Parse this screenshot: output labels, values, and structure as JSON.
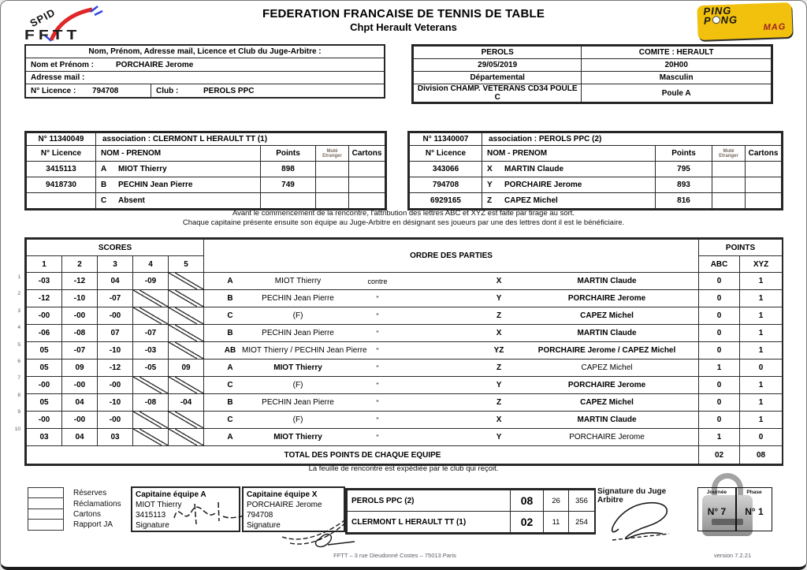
{
  "header": {
    "title": "FEDERATION FRANCAISE DE TENNIS DE TABLE",
    "subtitle": "Chpt Herault Veterans",
    "logo_spid": "SPID",
    "logo_fftt": "FFTT",
    "logo_ping": "PING",
    "logo_pong_p": "P",
    "logo_pong_ng": "NG",
    "logo_mag": "MAG"
  },
  "judge_box": {
    "header": "Nom, Prénom, Adresse mail, Licence et Club du Juge-Arbitre :",
    "name_label": "Nom et Prénom :",
    "name_value": "PORCHAIRE   Jerome",
    "mail_label": "Adresse mail  :",
    "licence_label": "N° Licence    :",
    "licence_value": "794708",
    "club_label": "Club :",
    "club_value": "PEROLS PPC"
  },
  "info_box": {
    "rows": [
      [
        "PEROLS",
        "COMITE : HERAULT"
      ],
      [
        "29/05/2019",
        "20H00"
      ],
      [
        "Départemental",
        "Masculin"
      ],
      [
        "Division  CHAMP. VETERANS CD34 POULE C",
        "Poule A"
      ]
    ]
  },
  "teams": [
    {
      "number": "N° 11340049",
      "association": "association : CLERMONT L HERAULT TT  (1)",
      "headers": {
        "licence": "N° Licence",
        "name": "NOM - PRENOM",
        "points": "Points",
        "mute": "Muté",
        "etranger": "Etranger",
        "cartons": "Cartons"
      },
      "players": [
        {
          "licence": "3415113",
          "letter": "A",
          "name": "MIOT  Thierry",
          "points": "898"
        },
        {
          "licence": "9418730",
          "letter": "B",
          "name": "PECHIN  Jean Pierre",
          "points": "749"
        },
        {
          "licence": "",
          "letter": "C",
          "name": "Absent",
          "points": ""
        }
      ]
    },
    {
      "number": "N° 11340007",
      "association": "association : PEROLS PPC  (2)",
      "headers": {
        "licence": "N° Licence",
        "name": "NOM - PRENOM",
        "points": "Points",
        "mute": "Muté",
        "etranger": "Etranger",
        "cartons": "Cartons"
      },
      "players": [
        {
          "licence": "343066",
          "letter": "X",
          "name": "MARTIN  Claude",
          "points": "795"
        },
        {
          "licence": "794708",
          "letter": "Y",
          "name": "PORCHAIRE  Jerome",
          "points": "893"
        },
        {
          "licence": "6929165",
          "letter": "Z",
          "name": "CAPEZ  Michel",
          "points": "816"
        }
      ]
    }
  ],
  "notice": {
    "line1": "Avant le commencement de la rencontre, l'attribution des lettres ABC et XYZ est faite par tirage au sort.",
    "line2": "Chaque capitaine présente ensuite son équipe au Juge-Arbitre en désignant ses joueurs par une des lettres dont il est le bénéficiaire."
  },
  "match_table": {
    "scores_label": "SCORES",
    "set_headers": [
      "1",
      "2",
      "3",
      "4",
      "5"
    ],
    "ordre_label": "ORDRE DES PARTIES",
    "points_label": "POINTS",
    "abc_label": "ABC",
    "xyz_label": "XYZ",
    "vs_first": "contre",
    "vs_rest": "\"",
    "rows": [
      {
        "num": "1",
        "scores": [
          "-03",
          "-12",
          "04",
          "-09",
          null
        ],
        "a": {
          "letter": "A",
          "player": "MIOT Thierry",
          "win": false
        },
        "x": {
          "letter": "X",
          "player": "MARTIN Claude",
          "win": true
        },
        "abc": "0",
        "xyz": "1"
      },
      {
        "num": "2",
        "scores": [
          "-12",
          "-10",
          "-07",
          null,
          null
        ],
        "a": {
          "letter": "B",
          "player": "PECHIN Jean Pierre",
          "win": false
        },
        "x": {
          "letter": "Y",
          "player": "PORCHAIRE Jerome",
          "win": true
        },
        "abc": "0",
        "xyz": "1"
      },
      {
        "num": "3",
        "scores": [
          "-00",
          "-00",
          "-00",
          null,
          null
        ],
        "a": {
          "letter": "C",
          "player": "(F)",
          "win": false
        },
        "x": {
          "letter": "Z",
          "player": "CAPEZ Michel",
          "win": true
        },
        "abc": "0",
        "xyz": "1"
      },
      {
        "num": "4",
        "scores": [
          "-06",
          "-08",
          "07",
          "-07",
          null
        ],
        "a": {
          "letter": "B",
          "player": "PECHIN Jean Pierre",
          "win": false
        },
        "x": {
          "letter": "X",
          "player": "MARTIN Claude",
          "win": true
        },
        "abc": "0",
        "xyz": "1"
      },
      {
        "num": "5",
        "scores": [
          "05",
          "-07",
          "-10",
          "-03",
          null
        ],
        "a": {
          "letter": "AB",
          "player": "MIOT Thierry / PECHIN Jean Pierre",
          "win": false
        },
        "x": {
          "letter": "YZ",
          "player": "PORCHAIRE Jerome / CAPEZ Michel",
          "win": true
        },
        "abc": "0",
        "xyz": "1"
      },
      {
        "num": "6",
        "scores": [
          "05",
          "09",
          "-12",
          "-05",
          "09"
        ],
        "a": {
          "letter": "A",
          "player": "MIOT Thierry",
          "win": true
        },
        "x": {
          "letter": "Z",
          "player": "CAPEZ Michel",
          "win": false
        },
        "abc": "1",
        "xyz": "0"
      },
      {
        "num": "7",
        "scores": [
          "-00",
          "-00",
          "-00",
          null,
          null
        ],
        "a": {
          "letter": "C",
          "player": "(F)",
          "win": false
        },
        "x": {
          "letter": "Y",
          "player": "PORCHAIRE Jerome",
          "win": true
        },
        "abc": "0",
        "xyz": "1"
      },
      {
        "num": "8",
        "scores": [
          "05",
          "04",
          "-10",
          "-08",
          "-04"
        ],
        "a": {
          "letter": "B",
          "player": "PECHIN Jean Pierre",
          "win": false
        },
        "x": {
          "letter": "Z",
          "player": "CAPEZ Michel",
          "win": true
        },
        "abc": "0",
        "xyz": "1"
      },
      {
        "num": "9",
        "scores": [
          "-00",
          "-00",
          "-00",
          null,
          null
        ],
        "a": {
          "letter": "C",
          "player": "(F)",
          "win": false
        },
        "x": {
          "letter": "X",
          "player": "MARTIN Claude",
          "win": true
        },
        "abc": "0",
        "xyz": "1"
      },
      {
        "num": "10",
        "scores": [
          "03",
          "04",
          "03",
          null,
          null
        ],
        "a": {
          "letter": "A",
          "player": "MIOT Thierry",
          "win": true
        },
        "x": {
          "letter": "Y",
          "player": "PORCHAIRE Jerome",
          "win": false
        },
        "abc": "1",
        "xyz": "0"
      }
    ],
    "total_label": "TOTAL DES POINTS DE CHAQUE EQUIPE",
    "total_abc": "02",
    "total_xyz": "08"
  },
  "expedition_note": "La feuille de rencontre est expédiée par le club qui reçoit.",
  "bottom": {
    "checkboxes": [
      "Réserves",
      "Réclamations",
      "Cartons",
      "Rapport JA"
    ],
    "captain_a": {
      "title": "Capitaine équipe A",
      "name": "MIOT Thierry",
      "licence": "3415113",
      "signature_label": "Signature"
    },
    "captain_x": {
      "title": "Capitaine équipe X",
      "name": "PORCHAIRE Jerome",
      "licence": "794708",
      "signature_label": "Signature"
    },
    "results": [
      {
        "team": "PEROLS PPC  (2)",
        "points": "08",
        "sets": "26",
        "balls": "356"
      },
      {
        "team": "CLERMONT L HERAULT TT  (1)",
        "points": "02",
        "sets": "11",
        "balls": "254"
      }
    ],
    "judge_signature_label": "Signature du Juge Arbitre",
    "journee_label": "Journée",
    "journee_value": "N° 7",
    "phase_label": "Phase",
    "phase_value": "N° 1"
  },
  "footer": {
    "address": "FFTT  –  3 rue Dieudonné Costes  –  75013 Paris",
    "version": "version 7.2.21"
  },
  "colors": {
    "accent_yellow": "#f2c10e",
    "logo_red": "#e02626",
    "logo_blue": "#2b46e0"
  }
}
